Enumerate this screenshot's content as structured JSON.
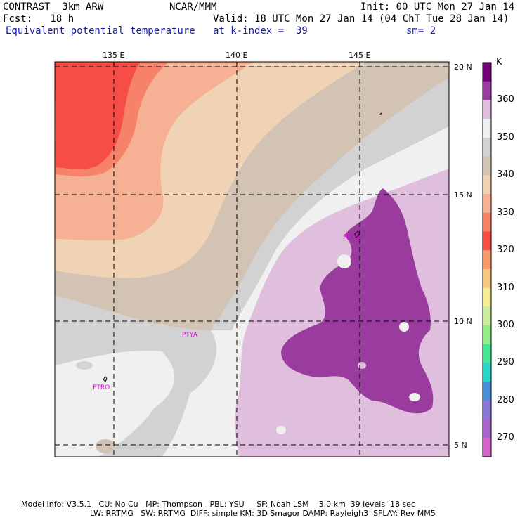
{
  "header": {
    "line1_left": "CONTRAST  3km ARW",
    "line1_center": "NCAR/MMM",
    "line1_right": "Init: 00 UTC Mon 27 Jan 14",
    "line2_left": "Fcst:   18 h",
    "line2_right": "Valid: 18 UTC Mon 27 Jan 14 (04 ChT Tue 28 Jan 14)",
    "line3_left": "Equivalent potential temperature",
    "line3_center": "at k-index =  39",
    "line3_right": "sm= 2"
  },
  "map": {
    "lon_labels": [
      "135 E",
      "140 E",
      "145 E"
    ],
    "lat_labels": [
      "20 N",
      "15 N",
      "10 N",
      "5 N"
    ],
    "stations": [
      "PGUM",
      "PTYA",
      "PTRO"
    ]
  },
  "colorbar": {
    "unit": "K",
    "labels": [
      "360",
      "350",
      "340",
      "330",
      "320",
      "310",
      "300",
      "290",
      "280",
      "270"
    ],
    "colors": [
      "#720078",
      "#9a3c9e",
      "#e0bede",
      "#f0f0f0",
      "#d2d2d2",
      "#d2c3b4",
      "#f0d2b4",
      "#f6b093",
      "#f6826a",
      "#f64e46",
      "#f79a6a",
      "#f6c882",
      "#f6ee94",
      "#cdeea0",
      "#96ec88",
      "#46e696",
      "#2ad6c8",
      "#4a8ed6",
      "#8a78d6",
      "#a864c8",
      "#d264c8"
    ]
  },
  "footer": {
    "line1": "Model Info: V3.5.1   CU: No Cu   MP: Thompson   PBL: YSU     SF: Noah LSM    3.0 km  39 levels  18 sec",
    "line2": "LW: RRTMG   SW: RRTMG  DIFF: simple KM: 3D Smagor DAMP: Rayleigh3  SFLAY: Rev MM5"
  }
}
